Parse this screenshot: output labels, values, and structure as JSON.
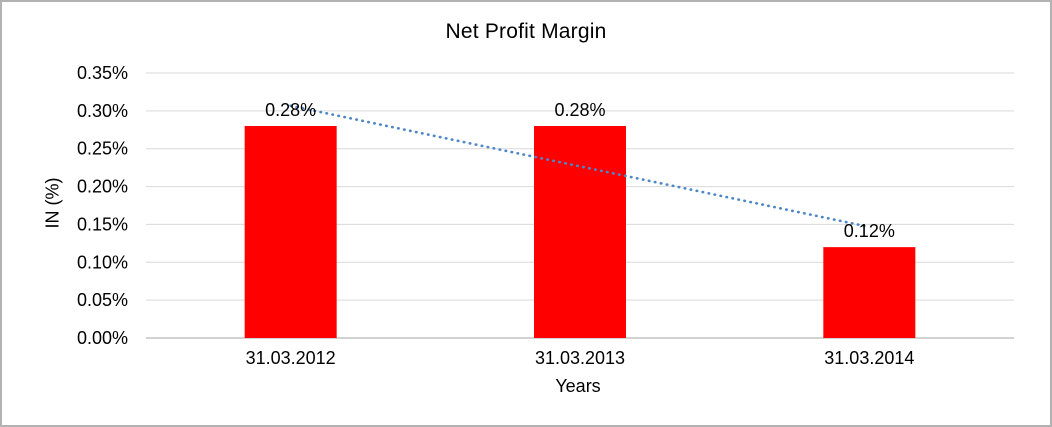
{
  "window": {
    "background": "#ffffff",
    "border_color": "#b2b2b2"
  },
  "chart_data": {
    "type": "bar",
    "title": "Net Profit Margin",
    "xlabel": "Years",
    "ylabel": "IN (%)",
    "categories": [
      "31.03.2012",
      "31.03.2013",
      "31.03.2014"
    ],
    "series": [
      {
        "name": "Net Profit Margin",
        "color": "#FF0000",
        "values": [
          0.28,
          0.28,
          0.12
        ]
      }
    ],
    "data_labels": [
      "0.28%",
      "0.28%",
      "0.12%"
    ],
    "y_ticks": {
      "values": [
        0.0,
        0.05,
        0.1,
        0.15,
        0.2,
        0.25,
        0.3,
        0.35
      ],
      "labels": [
        "0.00%",
        "0.05%",
        "0.10%",
        "0.15%",
        "0.20%",
        "0.25%",
        "0.30%",
        "0.35%"
      ]
    },
    "ylim": [
      0,
      0.35
    ],
    "grid": true,
    "legend": "none",
    "trendline": {
      "type": "linear",
      "style": "dotted",
      "color": "#4E87C8"
    },
    "colors": {
      "gridline": "#D9D9D9",
      "axis_line": "#D2D2D2",
      "text": "#000000"
    }
  }
}
